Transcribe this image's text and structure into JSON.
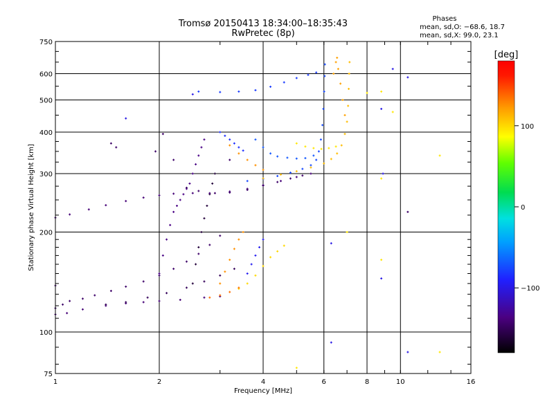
{
  "chart_data": {
    "type": "scatter",
    "title": "Tromsø 20150413 18:34:00–18:35:43",
    "subtitle": "RwPretec (8p)",
    "xlabel": "Frequency [MHz]",
    "ylabel": "Stationary phase Virtual Height [km]",
    "x_scale": "log",
    "y_scale": "log",
    "xlim": [
      1,
      16
    ],
    "ylim": [
      75,
      750
    ],
    "x_ticks": [
      1,
      2,
      4,
      6,
      8,
      10,
      16
    ],
    "x_tick_labels": [
      "1",
      "2",
      "4",
      "6",
      "8",
      "10",
      "16"
    ],
    "y_ticks": [
      75,
      100,
      200,
      300,
      400,
      500,
      600,
      750
    ],
    "y_tick_labels": [
      "75",
      "100",
      "200",
      "300",
      "400",
      "500",
      "600",
      "750"
    ],
    "grid": true,
    "stats": {
      "heading": "Phases",
      "line_o": "mean, sd,O: −68.6, 18.7",
      "line_x": "mean, sd,X:  99.0, 23.1"
    },
    "colorbar": {
      "label": "[deg]",
      "min": -180,
      "max": 180,
      "ticks": [
        100,
        0,
        -100
      ],
      "tick_labels": [
        "100",
        "0",
        "−100"
      ]
    },
    "series": [
      {
        "phase": -145,
        "points": [
          [
            1.0,
            118
          ],
          [
            1.05,
            121
          ],
          [
            1.1,
            124
          ],
          [
            1.2,
            126
          ],
          [
            1.3,
            129
          ],
          [
            1.45,
            133
          ],
          [
            1.6,
            137
          ],
          [
            1.8,
            142
          ],
          [
            2.0,
            148
          ],
          [
            2.2,
            155
          ],
          [
            2.4,
            163
          ],
          [
            2.6,
            172
          ],
          [
            2.8,
            183
          ],
          [
            3.0,
            195
          ]
        ]
      },
      {
        "phase": -140,
        "points": [
          [
            1.0,
            113
          ],
          [
            1.08,
            114
          ],
          [
            1.2,
            117
          ],
          [
            1.4,
            120
          ],
          [
            1.6,
            122
          ],
          [
            1.8,
            123
          ],
          [
            2.0,
            124
          ],
          [
            2.3,
            125
          ],
          [
            2.7,
            127
          ],
          [
            3.0,
            128
          ]
        ]
      },
      {
        "phase": -150,
        "points": [
          [
            1.4,
            121
          ],
          [
            1.6,
            123
          ],
          [
            1.85,
            127
          ],
          [
            2.1,
            131
          ],
          [
            2.4,
            136
          ],
          [
            2.7,
            142
          ],
          [
            3.0,
            148
          ],
          [
            3.3,
            155
          ]
        ]
      },
      {
        "phase": -135,
        "points": [
          [
            2.0,
            150
          ],
          [
            2.05,
            170
          ],
          [
            2.1,
            190
          ],
          [
            2.15,
            210
          ],
          [
            2.2,
            230
          ],
          [
            2.25,
            240
          ],
          [
            2.3,
            250
          ],
          [
            2.35,
            260
          ],
          [
            2.4,
            270
          ],
          [
            2.45,
            280
          ],
          [
            2.5,
            300
          ],
          [
            2.55,
            320
          ],
          [
            2.6,
            340
          ],
          [
            2.65,
            360
          ],
          [
            2.7,
            380
          ]
        ]
      },
      {
        "phase": -160,
        "points": [
          [
            2.5,
            140
          ],
          [
            2.55,
            160
          ],
          [
            2.6,
            180
          ],
          [
            2.65,
            200
          ],
          [
            2.7,
            220
          ],
          [
            2.75,
            240
          ],
          [
            2.8,
            260
          ],
          [
            2.85,
            280
          ],
          [
            2.9,
            300
          ]
        ]
      },
      {
        "phase": -140,
        "points": [
          [
            1.0,
            221
          ],
          [
            1.1,
            226
          ],
          [
            1.25,
            234
          ],
          [
            1.4,
            241
          ],
          [
            1.6,
            248
          ],
          [
            1.8,
            254
          ],
          [
            2.0,
            258
          ],
          [
            2.2,
            261
          ],
          [
            2.5,
            262
          ],
          [
            2.8,
            262
          ],
          [
            3.2,
            265
          ],
          [
            3.6,
            270
          ],
          [
            4.0,
            277
          ],
          [
            4.5,
            285
          ],
          [
            5.0,
            293
          ],
          [
            5.5,
            300
          ]
        ]
      },
      {
        "phase": -145,
        "points": [
          [
            2.4,
            272
          ],
          [
            2.6,
            266
          ],
          [
            2.9,
            262
          ],
          [
            3.2,
            263
          ],
          [
            3.6,
            268
          ],
          [
            4.0,
            276
          ],
          [
            4.4,
            283
          ],
          [
            4.8,
            290
          ],
          [
            5.2,
            296
          ]
        ]
      },
      {
        "phase": -75,
        "points": [
          [
            3.6,
            285
          ],
          [
            4.0,
            289
          ],
          [
            4.4,
            295
          ],
          [
            4.8,
            302
          ],
          [
            5.2,
            310
          ],
          [
            5.5,
            318
          ],
          [
            5.7,
            330
          ],
          [
            5.8,
            350
          ],
          [
            5.88,
            380
          ],
          [
            5.94,
            420
          ],
          [
            5.98,
            470
          ],
          [
            6.01,
            530
          ],
          [
            6.03,
            590
          ],
          [
            6.04,
            640
          ]
        ]
      },
      {
        "phase": -70,
        "points": [
          [
            3.8,
            380
          ],
          [
            4.0,
            360
          ],
          [
            4.2,
            345
          ],
          [
            4.4,
            338
          ],
          [
            4.7,
            335
          ],
          [
            5.0,
            333
          ],
          [
            5.3,
            334
          ],
          [
            5.6,
            340
          ]
        ]
      },
      {
        "phase": -80,
        "points": [
          [
            2.6,
            530
          ],
          [
            3.0,
            528
          ],
          [
            3.4,
            530
          ],
          [
            3.8,
            535
          ],
          [
            4.2,
            548
          ],
          [
            4.6,
            565
          ],
          [
            5.0,
            582
          ],
          [
            5.4,
            595
          ],
          [
            5.7,
            605
          ]
        ]
      },
      {
        "phase": -85,
        "points": [
          [
            3.0,
            400
          ],
          [
            3.1,
            390
          ],
          [
            3.2,
            380
          ],
          [
            3.3,
            370
          ],
          [
            3.4,
            360
          ],
          [
            3.5,
            352
          ]
        ]
      },
      {
        "phase": 110,
        "points": [
          [
            4.0,
            290
          ],
          [
            4.5,
            298
          ],
          [
            5.0,
            305
          ],
          [
            5.5,
            313
          ],
          [
            6.0,
            322
          ],
          [
            6.3,
            332
          ],
          [
            6.55,
            345
          ],
          [
            6.75,
            365
          ],
          [
            6.9,
            395
          ],
          [
            7.0,
            430
          ],
          [
            7.05,
            480
          ],
          [
            7.08,
            540
          ],
          [
            7.1,
            600
          ],
          [
            7.12,
            650
          ]
        ]
      },
      {
        "phase": 95,
        "points": [
          [
            5.0,
            370
          ],
          [
            5.3,
            362
          ],
          [
            5.6,
            358
          ],
          [
            5.9,
            356
          ],
          [
            6.2,
            358
          ],
          [
            6.5,
            362
          ]
        ]
      },
      {
        "phase": 125,
        "points": [
          [
            3.2,
            365
          ],
          [
            3.4,
            345
          ],
          [
            3.6,
            330
          ],
          [
            3.8,
            318
          ],
          [
            4.0,
            308
          ]
        ]
      },
      {
        "phase": 120,
        "points": [
          [
            6.4,
            600
          ],
          [
            6.5,
            650
          ],
          [
            6.55,
            670
          ],
          [
            6.6,
            620
          ],
          [
            6.7,
            560
          ],
          [
            6.8,
            500
          ],
          [
            6.9,
            450
          ]
        ]
      },
      {
        "phase": 125,
        "points": [
          [
            3.0,
            140
          ],
          [
            3.1,
            152
          ],
          [
            3.2,
            165
          ],
          [
            3.3,
            178
          ],
          [
            3.4,
            190
          ],
          [
            3.5,
            200
          ]
        ]
      },
      {
        "phase": 100,
        "points": [
          [
            3.4,
            135
          ],
          [
            3.6,
            140
          ],
          [
            3.8,
            148
          ],
          [
            4.0,
            158
          ],
          [
            4.2,
            168
          ],
          [
            4.4,
            175
          ],
          [
            4.6,
            182
          ]
        ]
      },
      {
        "phase": -95,
        "points": [
          [
            3.6,
            150
          ],
          [
            3.7,
            160
          ],
          [
            3.8,
            170
          ],
          [
            3.9,
            180
          ],
          [
            4.0,
            190
          ]
        ]
      },
      {
        "phase": 135,
        "points": [
          [
            2.8,
            127
          ],
          [
            3.0,
            129
          ],
          [
            3.2,
            132
          ],
          [
            3.4,
            136
          ]
        ]
      },
      {
        "phase": -100,
        "points": [
          [
            8.8,
            470
          ],
          [
            8.9,
            300
          ],
          [
            9.5,
            620
          ],
          [
            10.5,
            585
          ],
          [
            6.3,
            185
          ],
          [
            8.8,
            145
          ],
          [
            6.3,
            93
          ],
          [
            10.5,
            87
          ],
          [
            1.6,
            440
          ],
          [
            2.5,
            520
          ]
        ]
      },
      {
        "phase": 95,
        "points": [
          [
            8.8,
            530
          ],
          [
            9.5,
            460
          ],
          [
            13.0,
            340
          ],
          [
            8.8,
            165
          ],
          [
            13.0,
            87
          ],
          [
            5.0,
            78
          ],
          [
            7.0,
            200
          ],
          [
            8.8,
            290
          ],
          [
            8.0,
            525
          ]
        ]
      },
      {
        "phase": -145,
        "points": [
          [
            1.45,
            370
          ],
          [
            1.5,
            360
          ],
          [
            1.95,
            350
          ],
          [
            2.2,
            330
          ],
          [
            2.05,
            395
          ],
          [
            3.2,
            330
          ],
          [
            1.0,
            138
          ],
          [
            10.5,
            230
          ]
        ]
      }
    ]
  }
}
